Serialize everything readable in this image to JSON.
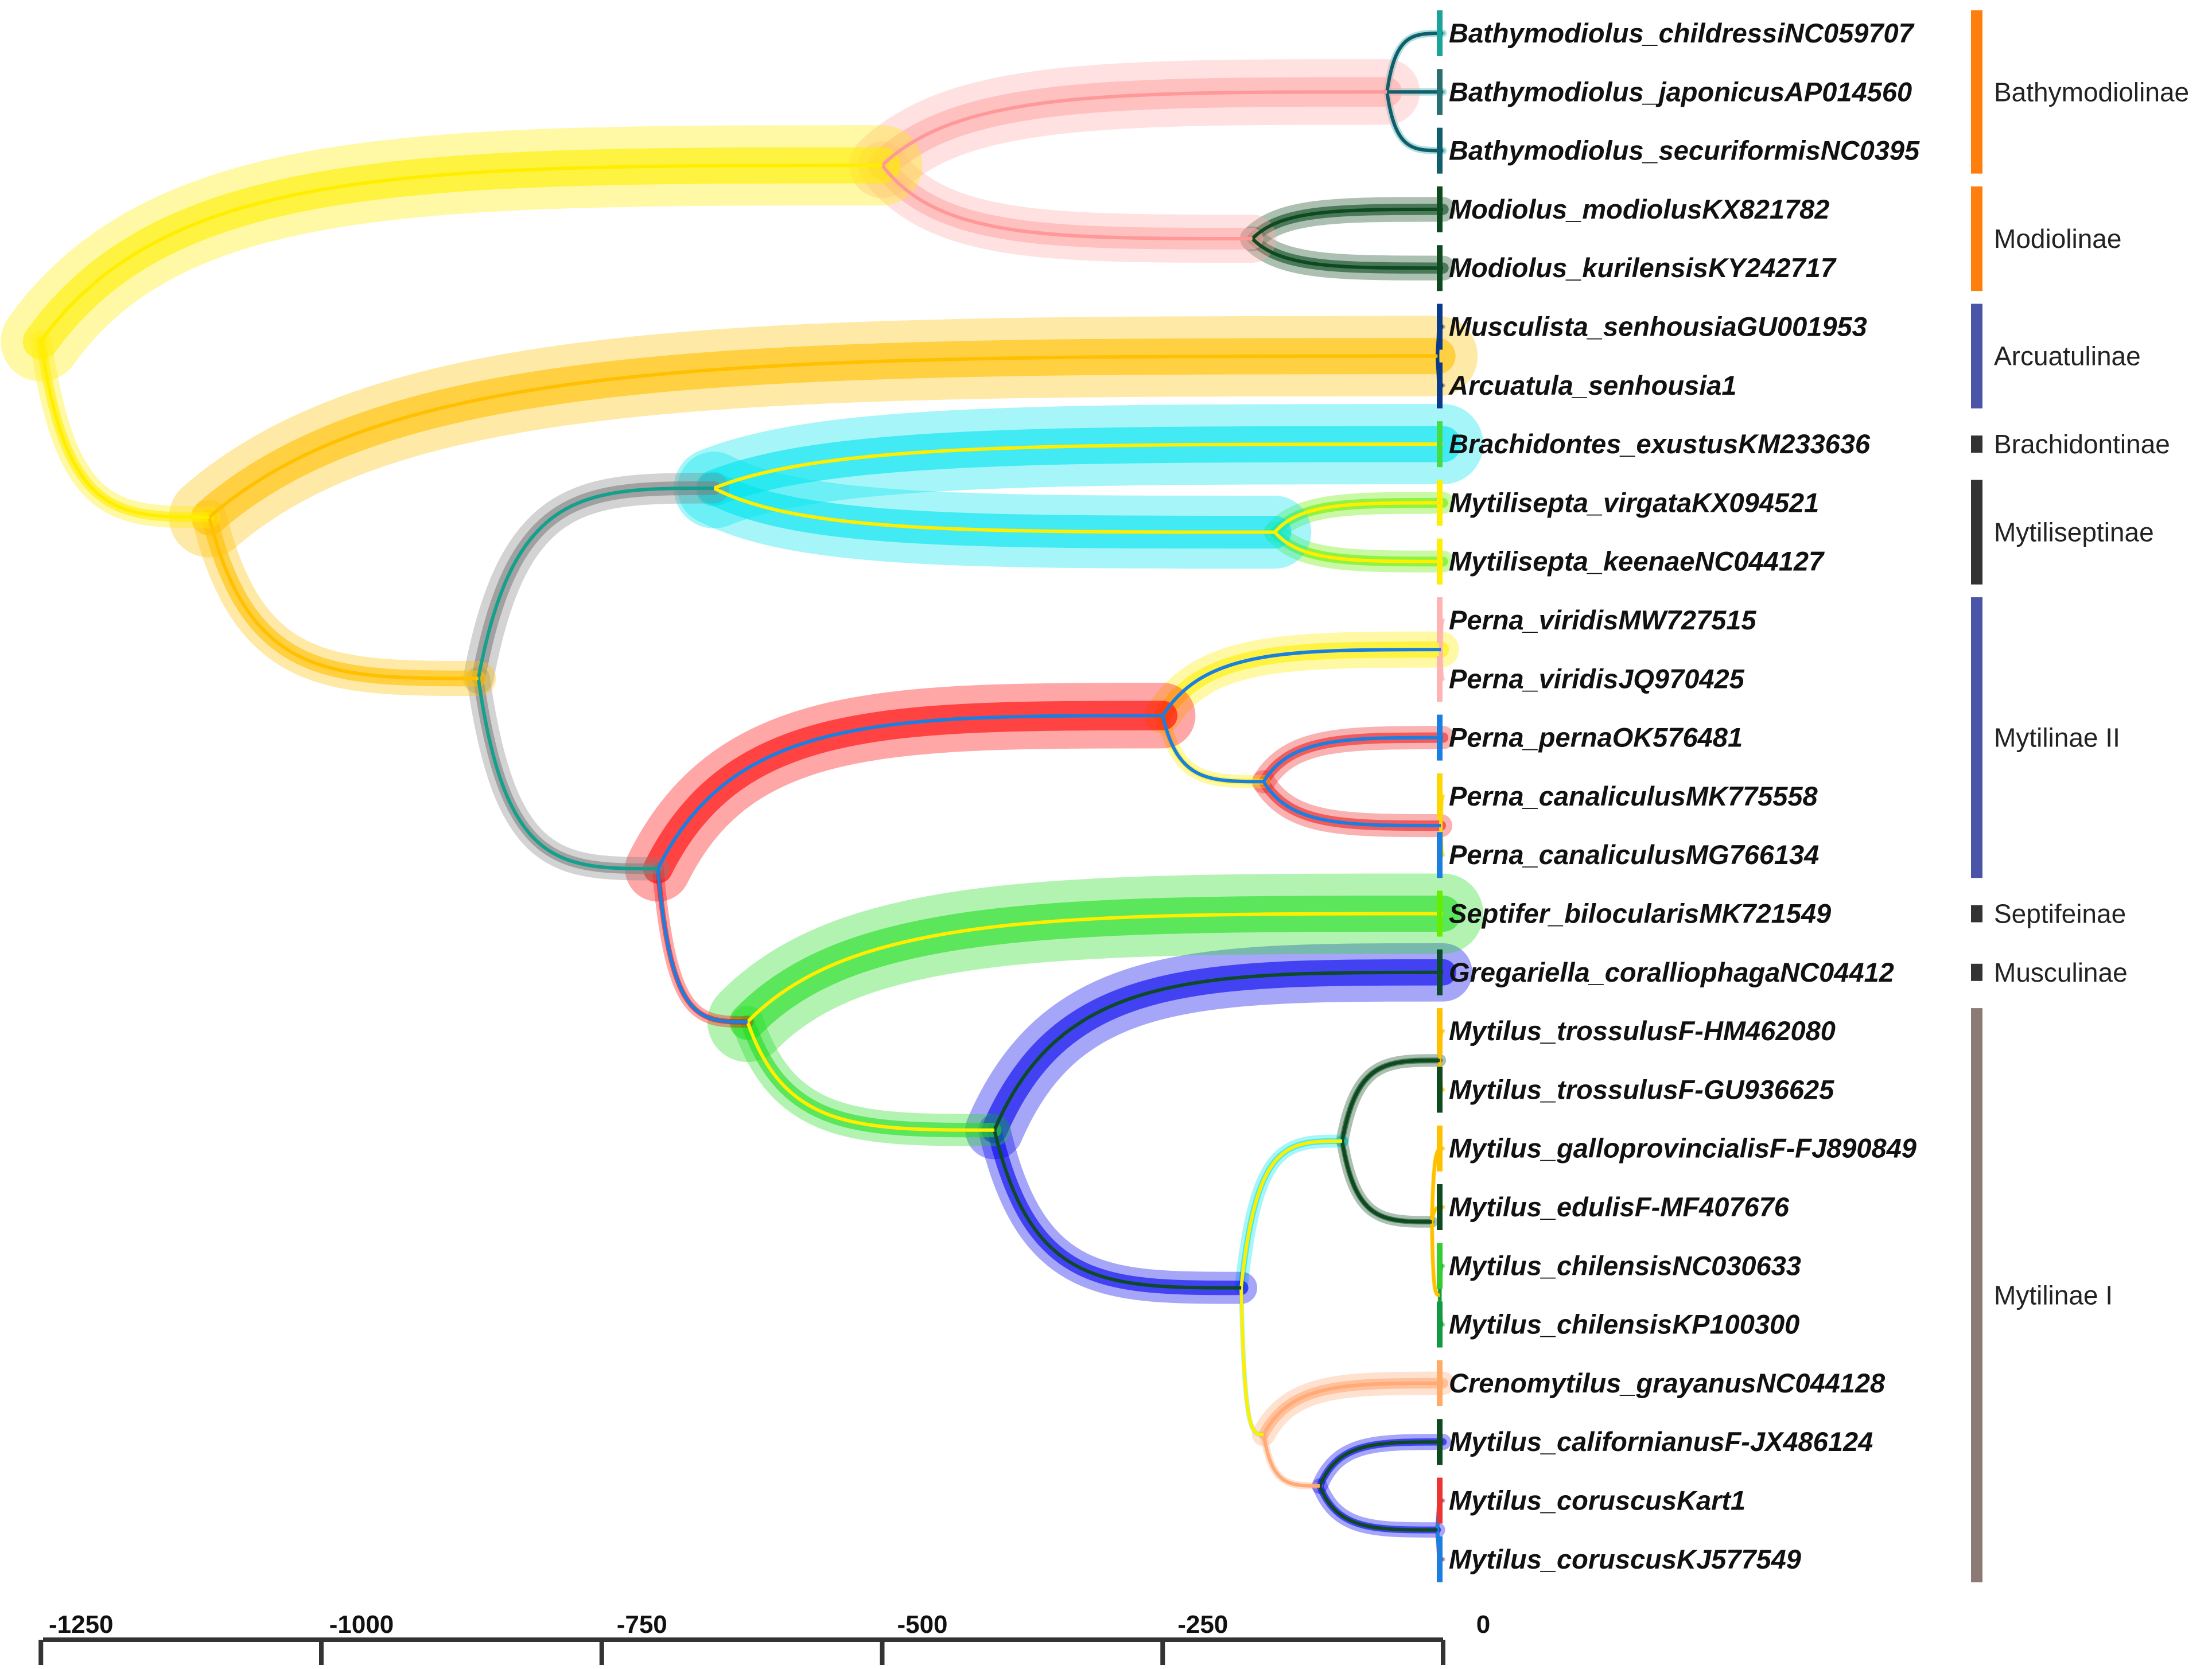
{
  "taxa": [
    {
      "name": "Bathymodiolus_childressiNC059707",
      "color": "#1aa39a"
    },
    {
      "name": "Bathymodiolus_japonicusAP014560",
      "color": "#2a6f70"
    },
    {
      "name": "Bathymodiolus_securiformisNC0395",
      "color": "#0f5e6b"
    },
    {
      "name": "Modiolus_modiolusKX821782",
      "color": "#0d4a1f"
    },
    {
      "name": "Modiolus_kurilensisKY242717",
      "color": "#0d4a1f"
    },
    {
      "name": "Musculista_senhousiaGU001953",
      "color": "#0a3a8a"
    },
    {
      "name": "Arcuatula_senhousia1",
      "color": "#0a3a8a"
    },
    {
      "name": "Brachidontes_exustusKM233636",
      "color": "#44dd44"
    },
    {
      "name": "Mytilisepta_virgataKX094521",
      "color": "#ffee00"
    },
    {
      "name": "Mytilisepta_keenaeNC044127",
      "color": "#ffee00"
    },
    {
      "name": "Perna_viridisMW727515",
      "color": "#ffb3b3"
    },
    {
      "name": "Perna_viridisJQ970425",
      "color": "#ffb3b3"
    },
    {
      "name": "Perna_pernaOK576481",
      "color": "#1a7fe0"
    },
    {
      "name": "Perna_canaliculusMK775558",
      "color": "#ffd700"
    },
    {
      "name": "Perna_canaliculusMG766134",
      "color": "#1a7fe0"
    },
    {
      "name": "Septifer_bilocularisMK721549",
      "color": "#66ee00"
    },
    {
      "name": "Gregariella_coralliophagaNC04412",
      "color": "#0d4a2a"
    },
    {
      "name": "Mytilus_trossulusF-HM462080",
      "color": "#ffc000"
    },
    {
      "name": "Mytilus_trossulusF-GU936625",
      "color": "#0d4a1f"
    },
    {
      "name": "Mytilus_galloprovincialisF-FJ890849",
      "color": "#ffc000"
    },
    {
      "name": "Mytilus_edulisF-MF407676",
      "color": "#0d4a1f"
    },
    {
      "name": "Mytilus_chilensisNC030633",
      "color": "#33cc33"
    },
    {
      "name": "Mytilus_chilensisKP100300",
      "color": "#119944"
    },
    {
      "name": "Crenomytilus_grayanusNC044128",
      "color": "#ffaa66"
    },
    {
      "name": "Mytilus_californianusF-JX486124",
      "color": "#0d4a1f"
    },
    {
      "name": "Mytilus_coruscusKart1",
      "color": "#ee3333"
    },
    {
      "name": "Mytilus_coruscusKJ577549",
      "color": "#1a7fe0"
    }
  ],
  "groups": [
    {
      "label": "Bathymodiolinae",
      "color": "#ff7f0e",
      "from": 0,
      "to": 2
    },
    {
      "label": "Modiolinae",
      "color": "#ff7f0e",
      "from": 3,
      "to": 4
    },
    {
      "label": "Arcuatulinae",
      "color": "#4a55a8",
      "from": 5,
      "to": 6
    },
    {
      "label": "Brachidontinae",
      "color": "#333333",
      "from": 7,
      "to": 7
    },
    {
      "label": "Mytiliseptinae",
      "color": "#333333",
      "from": 8,
      "to": 9
    },
    {
      "label": "Mytilinae II",
      "color": "#4a55a8",
      "from": 10,
      "to": 14
    },
    {
      "label": "Septifeinae",
      "color": "#333333",
      "from": 15,
      "to": 15
    },
    {
      "label": "Musculinae",
      "color": "#333333",
      "from": 16,
      "to": 16
    },
    {
      "label": "Mytilinae I",
      "color": "#8c7b74",
      "from": 17,
      "to": 26
    }
  ],
  "nodes": [
    {
      "id": "root",
      "age": -1250,
      "fan": "#ffee00",
      "line": "#ffee00"
    },
    {
      "id": "modiolid",
      "age": -500,
      "fan": "#ffaaaa",
      "line": "#ff9999"
    },
    {
      "id": "bathy",
      "age": -50,
      "fan": "#1aa39a",
      "line": "#0f5e6b"
    },
    {
      "id": "modiolus",
      "age": -170,
      "fan": "#0d4a1f",
      "line": "#0d4a1f"
    },
    {
      "id": "arcuat",
      "age": -5,
      "fan": "#0a3a8a",
      "line": "#0a3a8a"
    },
    {
      "id": "mytilid",
      "age": -1100,
      "fan": "#ffc000",
      "line": "#ffc000"
    },
    {
      "id": "brachi_myti",
      "age": -650,
      "fan": "#00e5ee",
      "line": "#ffee00"
    },
    {
      "id": "mytilisepta",
      "age": -150,
      "fan": "#66ee00",
      "line": "#ffee00"
    },
    {
      "id": "core",
      "age": -860,
      "fan": "#808080",
      "line": "#14a08c"
    },
    {
      "id": "perna_rest",
      "age": -700,
      "fan": "#ff0000",
      "line": "#1a7fe0"
    },
    {
      "id": "perna",
      "age": -250,
      "fan": "#ffee00",
      "line": "#1a7fe0"
    },
    {
      "id": "perna_vir",
      "age": -2,
      "fan": "#ffb3b3",
      "line": "#ffb3b3"
    },
    {
      "id": "perna_ppc",
      "age": -160,
      "fan": "#ee2222",
      "line": "#1a7fe0"
    },
    {
      "id": "perna_can",
      "age": -2,
      "fan": "#ffd700",
      "line": "#ffd700"
    },
    {
      "id": "sept_rest",
      "age": -620,
      "fan": "#22dd22",
      "line": "#ffee00"
    },
    {
      "id": "greg_myt",
      "age": -400,
      "fan": "#0000ee",
      "line": "#0d4a2a"
    },
    {
      "id": "mytilus",
      "age": -180,
      "fan": "#00e5ee",
      "line": "#ffee00"
    },
    {
      "id": "mytA",
      "age": -90,
      "fan": "#0d4a1f",
      "line": "#0d4a1f"
    },
    {
      "id": "tross",
      "age": -3,
      "fan": "#ffc000",
      "line": "#ffc000"
    },
    {
      "id": "gall",
      "age": -10,
      "fan": "#ffc000",
      "line": "#ffc000"
    },
    {
      "id": "chil",
      "age": -3,
      "fan": "#33cc33",
      "line": "#119944"
    },
    {
      "id": "mytB",
      "age": -160,
      "fan": "#ffaa77",
      "line": "#ffaa77"
    },
    {
      "id": "calcor",
      "age": -110,
      "fan": "#0000ee",
      "line": "#0d4a1f"
    },
    {
      "id": "coru",
      "age": -5,
      "fan": "#ee3333",
      "line": "#1a7fe0"
    }
  ],
  "axis": {
    "ticks": [
      -1250,
      -1000,
      -750,
      -500,
      -250,
      0
    ],
    "tick_labels": [
      "-1250",
      "-1000",
      "-750",
      "-500",
      "-250",
      "0"
    ]
  }
}
